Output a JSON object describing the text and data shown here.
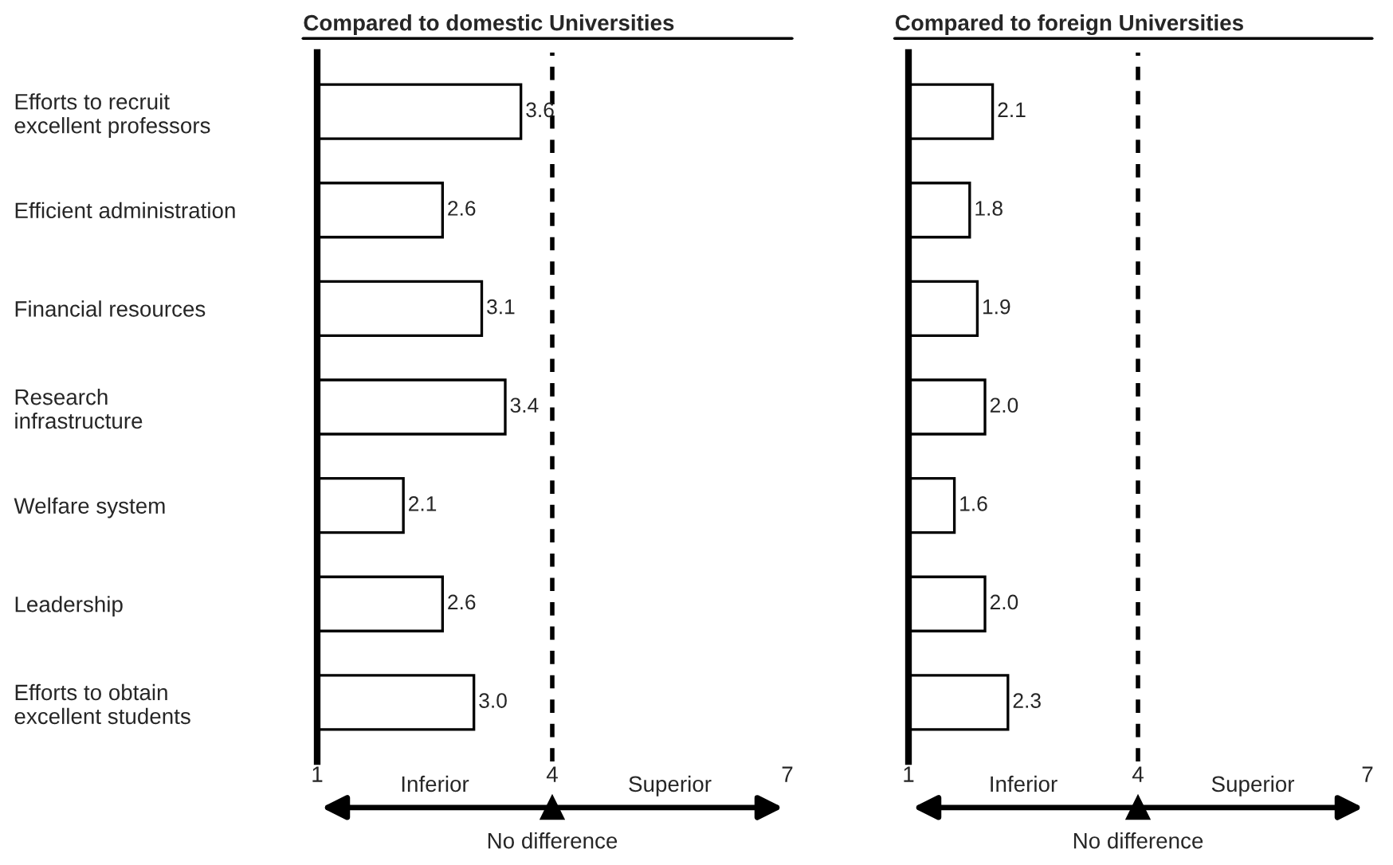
{
  "chart_data": [
    {
      "type": "bar",
      "orientation": "horizontal",
      "title": "Compared to domestic Universities",
      "categories": [
        "Efforts to recruit\nexcellent professors",
        "Efficient administration",
        "Financial resources",
        "Research\ninfrastructure",
        "Welfare system",
        "Leadership",
        "Efforts to obtain\nexcellent students"
      ],
      "values": [
        3.6,
        2.6,
        3.1,
        3.4,
        2.1,
        2.6,
        3.0
      ],
      "value_labels": [
        "3.6",
        "2.6",
        "3.1",
        "3.4",
        "2.1",
        "2.6",
        "3.0"
      ],
      "color": "#ffffff",
      "xlim": [
        1,
        7
      ],
      "xticks": [
        1,
        4,
        7
      ],
      "ref_lines": [
        {
          "axis": "x",
          "value": 4,
          "label": null,
          "line_style": "dashed",
          "color": "#000000"
        }
      ],
      "annotations": [
        "Inferior",
        "Superior",
        "No difference"
      ]
    },
    {
      "type": "bar",
      "orientation": "horizontal",
      "title": "Compared to foreign Universities",
      "categories": [
        null,
        null,
        null,
        null,
        null,
        null,
        null
      ],
      "values": [
        2.1,
        1.8,
        1.9,
        2.0,
        1.6,
        2.0,
        2.3
      ],
      "value_labels": [
        "2.1",
        "1.8",
        "1.9",
        "2.0",
        "1.6",
        "2.0",
        "2.3"
      ],
      "color": "#ffffff",
      "xlim": [
        1,
        7
      ],
      "xticks": [
        1,
        4,
        7
      ],
      "ref_lines": [
        {
          "axis": "x",
          "value": 4,
          "label": null,
          "line_style": "dashed",
          "color": "#000000"
        }
      ],
      "annotations": [
        "Inferior",
        "Superior",
        "No difference"
      ],
      "tick_labels": "x"
    }
  ]
}
